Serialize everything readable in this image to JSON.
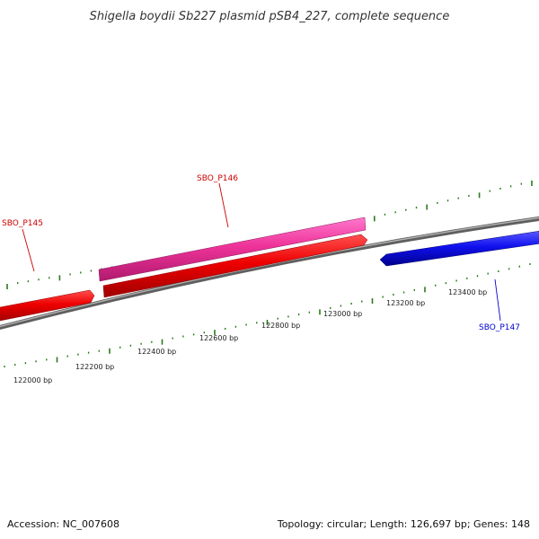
{
  "title": "Shigella boydii Sb227 plasmid pSB4_227, complete sequence",
  "footer": {
    "accession": "Accession: NC_007608",
    "summary": "Topology: circular; Length: 126,697 bp; Genes: 148"
  },
  "ruler": {
    "labels": [
      "122000 bp",
      "122200 bp",
      "122400 bp",
      "122600 bp",
      "122800 bp",
      "123000 bp",
      "123200 bp",
      "123400 bp"
    ],
    "tick_color": "#2a7a1a"
  },
  "genes": [
    {
      "name": "SBO_P145",
      "strand": "forward",
      "label_color": "#cc0000",
      "fill": "#ee0000"
    },
    {
      "name": "SBO_P146",
      "strand": "forward",
      "label_color": "#cc0000",
      "fill": "#ee0000"
    },
    {
      "name": "SBO_P147",
      "strand": "reverse",
      "label_color": "#0000cc",
      "fill": "#1010ee"
    }
  ],
  "colors": {
    "backbone": "#7a7a7a",
    "forward_gene": "#ee0000",
    "reverse_gene": "#1010ee",
    "highlight_gene": "#ee3399",
    "ticks": "#2a7a1a"
  }
}
